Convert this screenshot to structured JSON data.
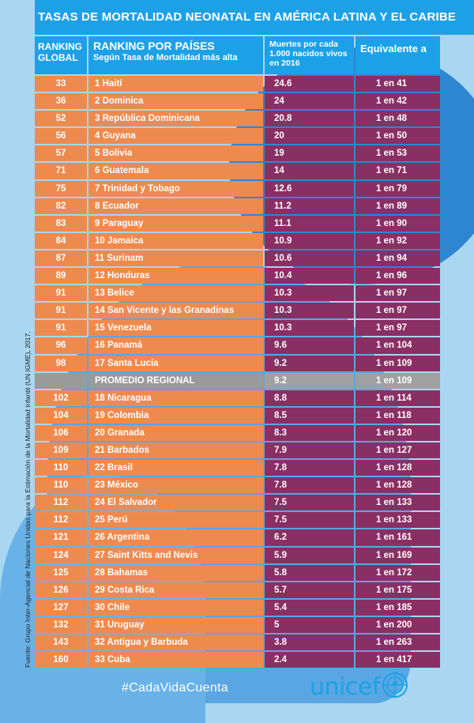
{
  "header": {
    "title": "TASAS DE MORTALIDAD NEONATAL EN  AMÉRICA LATINA Y EL CARIBE",
    "col_global": "RANKING GLOBAL",
    "col_country": "RANKING POR PAÍSES",
    "col_country_sub": "Según Tasa de Mortalidad más alta",
    "col_deaths": "Muertes por cada 1.000 nacidos vivos en 2016",
    "col_equiv": "Equivalente a"
  },
  "rows": [
    {
      "global": "33",
      "country": "1 Haití",
      "deaths": "24.6",
      "equiv": "1 en 41"
    },
    {
      "global": "36",
      "country": "2 Dominica",
      "deaths": "24",
      "equiv": "1 en 42"
    },
    {
      "global": "52",
      "country": "3 República Dominicana",
      "deaths": "20.8",
      "equiv": "1 en 48"
    },
    {
      "global": "56",
      "country": "4 Guyana",
      "deaths": "20",
      "equiv": "1 en 50"
    },
    {
      "global": "57",
      "country": "5 Bolivia",
      "deaths": "19",
      "equiv": "1 en 53"
    },
    {
      "global": "71",
      "country": "6 Guatemala",
      "deaths": "14",
      "equiv": "1 en 71"
    },
    {
      "global": "75",
      "country": "7 Trinidad y Tobago",
      "deaths": "12.6",
      "equiv": "1 en 79"
    },
    {
      "global": "82",
      "country": "8 Ecuador",
      "deaths": "11.2",
      "equiv": "1 en 89"
    },
    {
      "global": "83",
      "country": "9 Paraguay",
      "deaths": "11.1",
      "equiv": "1 en 90"
    },
    {
      "global": "84",
      "country": "10 Jamaica",
      "deaths": "10.9",
      "equiv": "1 en 92"
    },
    {
      "global": "87",
      "country": "11 Surinam",
      "deaths": "10.6",
      "equiv": "1 en 94"
    },
    {
      "global": "89",
      "country": "12 Honduras",
      "deaths": "10.4",
      "equiv": "1 en 96"
    },
    {
      "global": "91",
      "country": "13 Belice",
      "deaths": "10.3",
      "equiv": "1 en 97"
    },
    {
      "global": "91",
      "country": "14 San Vicente y las Granadinas",
      "deaths": "10.3",
      "equiv": "1 en 97"
    },
    {
      "global": "91",
      "country": "15 Venezuela",
      "deaths": "10.3",
      "equiv": "1 en 97"
    },
    {
      "global": "96",
      "country": "16 Panamá",
      "deaths": "9.6",
      "equiv": "1 en 104"
    },
    {
      "global": "98",
      "country": "17 Santa Lucía",
      "deaths": "9.2",
      "equiv": "1 en 109"
    },
    {
      "global": "",
      "country": "PROMEDIO REGIONAL",
      "deaths": "9.2",
      "equiv": "1 en 109",
      "avg": true
    },
    {
      "global": "102",
      "country": "18 Nicaragua",
      "deaths": "8.8",
      "equiv": "1 en 114"
    },
    {
      "global": "104",
      "country": "19 Colombia",
      "deaths": "8.5",
      "equiv": "1 en 118"
    },
    {
      "global": "106",
      "country": "20 Granada",
      "deaths": "8.3",
      "equiv": "1 en 120"
    },
    {
      "global": "109",
      "country": "21 Barbados",
      "deaths": "7.9",
      "equiv": "1 en 127"
    },
    {
      "global": "110",
      "country": "22 Brasil",
      "deaths": "7.8",
      "equiv": "1 en 128"
    },
    {
      "global": "110",
      "country": "23 México",
      "deaths": "7.8",
      "equiv": "1 en 128"
    },
    {
      "global": "112",
      "country": "24 El Salvador",
      "deaths": "7.5",
      "equiv": "1 en 133"
    },
    {
      "global": "112",
      "country": "25 Perú",
      "deaths": "7.5",
      "equiv": "1 en 133"
    },
    {
      "global": "121",
      "country": "26 Argentina",
      "deaths": "6.2",
      "equiv": "1 en 161"
    },
    {
      "global": "124",
      "country": "27 Saint Kitts and Nevis",
      "deaths": "5.9",
      "equiv": "1 en 169"
    },
    {
      "global": "125",
      "country": "28 Bahamas",
      "deaths": "5.8",
      "equiv": "1 en 172"
    },
    {
      "global": "126",
      "country": "29 Costa Rica",
      "deaths": "5.7",
      "equiv": "1 en 175"
    },
    {
      "global": "127",
      "country": "30 Chile",
      "deaths": "5.4",
      "equiv": "1 en 185"
    },
    {
      "global": "132",
      "country": "31 Uruguay",
      "deaths": "5",
      "equiv": "1 en 200"
    },
    {
      "global": "143",
      "country": "32 Antigua y Barbuda",
      "deaths": "3.8",
      "equiv": "1 en 263"
    },
    {
      "global": "160",
      "country": "33 Cuba",
      "deaths": "2.4",
      "equiv": "1 en 417"
    }
  ],
  "source": "Fuente: Grupo Inter-Agencial de Naciones Unidas para la Estimación de la Mortalidad Infantil (UN IGME), 2017.",
  "hashtag": "#CadaVidaCuenta",
  "logo_text": "unicef",
  "colors": {
    "header_blue": "#1da1e6",
    "orange": "#ef8a4e",
    "purple": "#8a2f63",
    "grey": "#9a9a9a"
  }
}
